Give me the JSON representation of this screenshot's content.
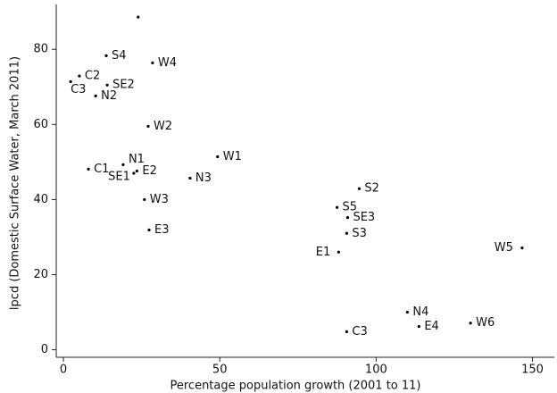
{
  "chart_data": {
    "type": "scatter",
    "x_label": "Percentage population growth (2001 to 11)",
    "y_label": "lpcd (Domestic Surface Water, March 2011)",
    "xlim": [
      -2.3,
      157
    ],
    "ylim": [
      -2,
      91
    ],
    "xticks": [
      0,
      50,
      100,
      150
    ],
    "yticks": [
      0,
      20,
      40,
      60,
      80
    ],
    "color": "#000000",
    "labels": [
      null,
      "S4",
      "W4",
      "C2",
      "C3",
      "SE2",
      "N2",
      "W2",
      "W1",
      "N1",
      "C1",
      "SE1",
      "E2",
      "N3",
      "W3",
      "E3",
      "S2",
      "S5",
      "SE3",
      "S3",
      "E1",
      "W5",
      "N4",
      "E4",
      "W6",
      "C3"
    ],
    "x": [
      23.9,
      13.7,
      28.5,
      5.1,
      2.3,
      14.0,
      10.3,
      27.1,
      49.3,
      19.1,
      8.0,
      22.5,
      23.5,
      40.5,
      25.9,
      27.4,
      94.6,
      87.5,
      90.9,
      90.6,
      88.0,
      146.7,
      110.0,
      113.7,
      130.2,
      90.6
    ],
    "values": [
      88.6,
      78.3,
      76.4,
      72.9,
      71.4,
      70.5,
      67.6,
      59.5,
      51.4,
      49.3,
      48.1,
      47.0,
      47.6,
      45.7,
      40.0,
      31.9,
      42.9,
      37.9,
      35.2,
      31.0,
      26.0,
      27.1,
      10.0,
      6.2,
      7.1,
      4.8
    ]
  }
}
